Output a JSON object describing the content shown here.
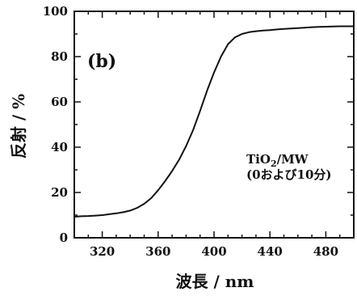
{
  "chart_data": {
    "type": "line",
    "panel_label": "(b)",
    "xlabel": "波長 / nm",
    "ylabel": "反射 / %",
    "xlim": [
      300,
      500
    ],
    "ylim": [
      0,
      100
    ],
    "x_ticks": [
      320,
      360,
      400,
      440,
      480
    ],
    "y_ticks": [
      0,
      20,
      40,
      60,
      80,
      100
    ],
    "grid": false,
    "annotation": {
      "line1_main": "TiO",
      "line1_sub": "2",
      "line1_rest": "/MW",
      "line2": "(0および10分)"
    },
    "series": [
      {
        "color": "#111111",
        "x": [
          300,
          305,
          310,
          315,
          320,
          325,
          330,
          335,
          340,
          345,
          350,
          355,
          360,
          365,
          370,
          375,
          380,
          385,
          390,
          395,
          400,
          405,
          410,
          415,
          420,
          425,
          430,
          435,
          440,
          445,
          450,
          455,
          460,
          465,
          470,
          475,
          480,
          485,
          490,
          495,
          500
        ],
        "y": [
          9.3,
          9.5,
          9.6,
          9.8,
          10.0,
          10.4,
          10.8,
          11.3,
          12.0,
          13.2,
          15.0,
          17.5,
          21.0,
          25.0,
          29.5,
          34.5,
          40.5,
          47.5,
          56.0,
          65.0,
          73.0,
          80.0,
          85.5,
          88.5,
          90.0,
          90.8,
          91.2,
          91.5,
          91.7,
          92.0,
          92.2,
          92.4,
          92.6,
          92.8,
          93.0,
          93.1,
          93.2,
          93.3,
          93.4,
          93.4,
          93.4
        ]
      }
    ]
  }
}
